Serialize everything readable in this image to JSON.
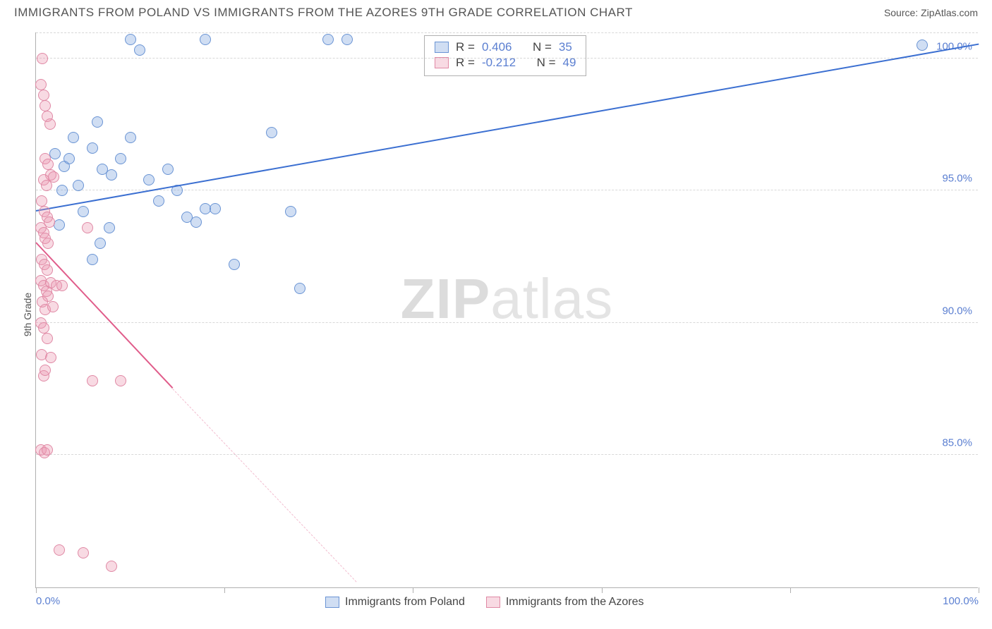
{
  "title": "IMMIGRANTS FROM POLAND VS IMMIGRANTS FROM THE AZORES 9TH GRADE CORRELATION CHART",
  "source": "Source: ZipAtlas.com",
  "y_axis_title": "9th Grade",
  "watermark_bold": "ZIP",
  "watermark_light": "atlas",
  "chart": {
    "type": "scatter",
    "xlim": [
      0,
      100
    ],
    "ylim": [
      80,
      101
    ],
    "x_ticks": [
      0,
      20,
      40,
      60,
      80,
      100
    ],
    "x_tick_labels": {
      "0": "0.0%",
      "100": "100.0%"
    },
    "y_ticks": [
      85,
      90,
      95,
      100
    ],
    "y_tick_labels": {
      "85": "85.0%",
      "90": "90.0%",
      "95": "95.0%",
      "100": "100.0%"
    },
    "grid_color": "#d8d8d8",
    "axis_color": "#b0b0b0",
    "background_color": "#ffffff",
    "series": [
      {
        "name": "Immigrants from Poland",
        "color_fill": "rgba(120,160,220,0.35)",
        "color_stroke": "#6a94d4",
        "trend_color": "#3b6fd1",
        "R": "0.406",
        "N": "35",
        "trend": {
          "x1": 0,
          "y1": 94.2,
          "x2": 100,
          "y2": 100.5
        },
        "points": [
          [
            2,
            96.4
          ],
          [
            3,
            95.9
          ],
          [
            3.5,
            96.2
          ],
          [
            4,
            97.0
          ],
          [
            6,
            96.6
          ],
          [
            6.5,
            97.6
          ],
          [
            2.8,
            95.0
          ],
          [
            4.5,
            95.2
          ],
          [
            7,
            95.8
          ],
          [
            8,
            95.6
          ],
          [
            9,
            96.2
          ],
          [
            10,
            97.0
          ],
          [
            12,
            95.4
          ],
          [
            13,
            94.6
          ],
          [
            14,
            95.8
          ],
          [
            15,
            95.0
          ],
          [
            16,
            94.0
          ],
          [
            17,
            93.8
          ],
          [
            18,
            94.3
          ],
          [
            19,
            94.3
          ],
          [
            6,
            92.4
          ],
          [
            6.8,
            93.0
          ],
          [
            7.8,
            93.6
          ],
          [
            10,
            100.7
          ],
          [
            11,
            100.3
          ],
          [
            18,
            100.7
          ],
          [
            31,
            100.7
          ],
          [
            33,
            100.7
          ],
          [
            25,
            97.2
          ],
          [
            21,
            92.2
          ],
          [
            28,
            91.3
          ],
          [
            27,
            94.2
          ],
          [
            94,
            100.5
          ],
          [
            2.5,
            93.7
          ],
          [
            5,
            94.2
          ]
        ]
      },
      {
        "name": "Immigrants from the Azores",
        "color_fill": "rgba(235,150,175,0.35)",
        "color_stroke": "#e089a5",
        "trend_color": "#e05c8a",
        "R": "-0.212",
        "N": "49",
        "trend": {
          "x1": 0,
          "y1": 93.0,
          "x2": 14.5,
          "y2": 87.5
        },
        "trend_dash": {
          "x1": 14.5,
          "y1": 87.5,
          "x2": 34,
          "y2": 80.2
        },
        "points": [
          [
            0.5,
            99.0
          ],
          [
            0.8,
            98.6
          ],
          [
            1,
            98.2
          ],
          [
            1.2,
            97.8
          ],
          [
            1.5,
            97.5
          ],
          [
            0.7,
            100.0
          ],
          [
            1,
            96.2
          ],
          [
            1.3,
            96.0
          ],
          [
            1.6,
            95.6
          ],
          [
            1.9,
            95.5
          ],
          [
            0.8,
            95.4
          ],
          [
            1.1,
            95.2
          ],
          [
            0.6,
            94.6
          ],
          [
            0.9,
            94.2
          ],
          [
            1.2,
            94.0
          ],
          [
            1.4,
            93.8
          ],
          [
            0.5,
            93.6
          ],
          [
            0.8,
            93.4
          ],
          [
            1.0,
            93.2
          ],
          [
            1.3,
            93.0
          ],
          [
            0.6,
            92.4
          ],
          [
            0.9,
            92.2
          ],
          [
            1.2,
            92.0
          ],
          [
            0.5,
            91.6
          ],
          [
            0.8,
            91.4
          ],
          [
            1.1,
            91.2
          ],
          [
            1.3,
            91.0
          ],
          [
            1.6,
            91.5
          ],
          [
            0.7,
            90.8
          ],
          [
            1.0,
            90.5
          ],
          [
            1.8,
            90.6
          ],
          [
            2.2,
            91.4
          ],
          [
            2.8,
            91.4
          ],
          [
            0.5,
            90.0
          ],
          [
            0.8,
            89.8
          ],
          [
            1.2,
            89.4
          ],
          [
            1.6,
            88.7
          ],
          [
            0.6,
            88.8
          ],
          [
            0.8,
            88.0
          ],
          [
            1.0,
            88.2
          ],
          [
            0.5,
            85.2
          ],
          [
            0.9,
            85.1
          ],
          [
            1.2,
            85.2
          ],
          [
            6,
            87.8
          ],
          [
            9,
            87.8
          ],
          [
            5.5,
            93.6
          ],
          [
            2.5,
            81.4
          ],
          [
            5,
            81.3
          ],
          [
            8,
            80.8
          ]
        ]
      }
    ]
  },
  "stats_box": {
    "rows": [
      {
        "swatch_fill": "rgba(120,160,220,0.35)",
        "swatch_stroke": "#6a94d4",
        "r_label": "R =",
        "r_val": "0.406",
        "n_label": "N =",
        "n_val": "35"
      },
      {
        "swatch_fill": "rgba(235,150,175,0.35)",
        "swatch_stroke": "#e089a5",
        "r_label": "R =",
        "r_val": "-0.212",
        "n_label": "N =",
        "n_val": "49"
      }
    ]
  },
  "legend": [
    {
      "swatch_fill": "rgba(120,160,220,0.35)",
      "swatch_stroke": "#6a94d4",
      "label": "Immigrants from Poland"
    },
    {
      "swatch_fill": "rgba(235,150,175,0.35)",
      "swatch_stroke": "#e089a5",
      "label": "Immigrants from the Azores"
    }
  ]
}
